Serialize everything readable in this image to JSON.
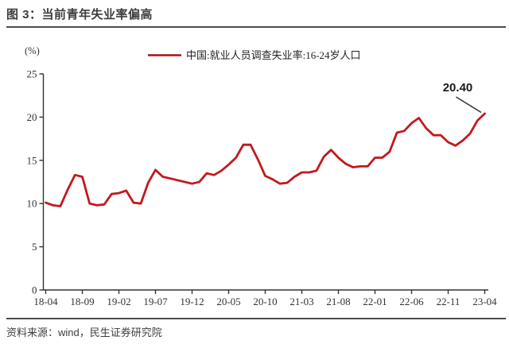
{
  "header": {
    "title": "图 3：当前青年失业率偏高"
  },
  "footer": {
    "source": "资料来源：wind，民生证券研究院"
  },
  "colors": {
    "line": "#c01a1e",
    "legend_line": "#a81412",
    "axis": "#333333",
    "annotation": "#1a1a1a",
    "rule": "#4d4d4d"
  },
  "chart_data": {
    "type": "line",
    "title": "",
    "unit_label": "(%)",
    "legend": "中国:就业人员调查失业率:16-24岁人口",
    "legend_position": "top-center",
    "grid": false,
    "ylim": [
      0,
      25
    ],
    "y_ticks": [
      0,
      5,
      10,
      15,
      20,
      25
    ],
    "x_tick_labels": [
      "18-04",
      "18-09",
      "19-02",
      "19-07",
      "19-12",
      "20-05",
      "20-10",
      "21-03",
      "21-08",
      "22-01",
      "22-06",
      "22-11",
      "23-04"
    ],
    "x": [
      "2018-04",
      "2018-05",
      "2018-06",
      "2018-07",
      "2018-08",
      "2018-09",
      "2018-10",
      "2018-11",
      "2018-12",
      "2019-01",
      "2019-02",
      "2019-03",
      "2019-04",
      "2019-05",
      "2019-06",
      "2019-07",
      "2019-08",
      "2019-09",
      "2019-10",
      "2019-11",
      "2019-12",
      "2020-01",
      "2020-02",
      "2020-03",
      "2020-04",
      "2020-05",
      "2020-06",
      "2020-07",
      "2020-08",
      "2020-09",
      "2020-10",
      "2020-11",
      "2020-12",
      "2021-01",
      "2021-02",
      "2021-03",
      "2021-04",
      "2021-05",
      "2021-06",
      "2021-07",
      "2021-08",
      "2021-09",
      "2021-10",
      "2021-11",
      "2021-12",
      "2022-01",
      "2022-02",
      "2022-03",
      "2022-04",
      "2022-05",
      "2022-06",
      "2022-07",
      "2022-08",
      "2022-09",
      "2022-10",
      "2022-11",
      "2022-12",
      "2023-01",
      "2023-02",
      "2023-03",
      "2023-04"
    ],
    "values": [
      10.1,
      9.8,
      9.7,
      11.6,
      13.3,
      13.1,
      10.0,
      9.8,
      9.9,
      11.1,
      11.2,
      11.5,
      10.1,
      10.0,
      12.4,
      13.9,
      13.1,
      12.9,
      12.7,
      12.5,
      12.3,
      12.5,
      13.5,
      13.3,
      13.8,
      14.5,
      15.3,
      16.8,
      16.8,
      15.1,
      13.2,
      12.8,
      12.3,
      12.4,
      13.1,
      13.6,
      13.6,
      13.8,
      15.4,
      16.2,
      15.3,
      14.6,
      14.2,
      14.3,
      14.3,
      15.3,
      15.3,
      16.0,
      18.2,
      18.4,
      19.3,
      19.9,
      18.7,
      17.9,
      17.9,
      17.1,
      16.7,
      17.3,
      18.1,
      19.6,
      20.4
    ],
    "annotation": {
      "label": "20.40",
      "x": "2023-04",
      "value": 20.4
    }
  }
}
